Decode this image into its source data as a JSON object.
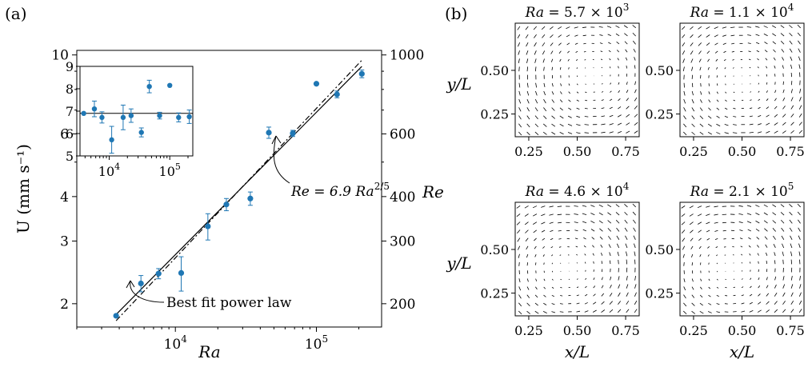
{
  "chart_data": [
    {
      "type": "scatter",
      "panel_label": "(a)",
      "x_scale": "log",
      "y_scale": "log",
      "xlabel": "Ra",
      "ylabel_left": "U (mm s⁻¹)",
      "ylabel_right": "Re",
      "xlim": [
        2000,
        290000
      ],
      "ylim": [
        1.72,
        10.3
      ],
      "x_ticks": [
        {
          "value": 10000,
          "base": "10",
          "exp": "4"
        },
        {
          "value": 100000,
          "base": "10",
          "exp": "5"
        }
      ],
      "y_ticks_left": [
        {
          "value": 2,
          "label": "2"
        },
        {
          "value": 3,
          "label": "3"
        },
        {
          "value": 4,
          "label": "4"
        },
        {
          "value": 6,
          "label": "6"
        },
        {
          "value": 10,
          "label": "10"
        }
      ],
      "y_ticks_right": [
        {
          "value": 200,
          "label": "200"
        },
        {
          "value": 300,
          "label": "300"
        },
        {
          "value": 400,
          "label": "400"
        },
        {
          "value": 600,
          "label": "600"
        },
        {
          "value": 1000,
          "label": "1000"
        }
      ],
      "right_axis_factor": 100,
      "marker_color": "#1f77b4",
      "points": [
        {
          "x": 3800,
          "y": 1.85,
          "err": 0
        },
        {
          "x": 5700,
          "y": 2.28,
          "err": 0.12
        },
        {
          "x": 7600,
          "y": 2.43,
          "err": 0.08
        },
        {
          "x": 11000,
          "y": 2.44,
          "err": 0.27
        },
        {
          "x": 17000,
          "y": 3.3,
          "err": 0.28
        },
        {
          "x": 23000,
          "y": 3.8,
          "err": 0.15
        },
        {
          "x": 34000,
          "y": 3.95,
          "err": 0.17
        },
        {
          "x": 46000,
          "y": 6.05,
          "err": 0.22
        },
        {
          "x": 68000,
          "y": 6.02,
          "err": 0.12
        },
        {
          "x": 100000,
          "y": 8.3,
          "err": 0
        },
        {
          "x": 140000,
          "y": 7.75,
          "err": 0.17
        },
        {
          "x": 210000,
          "y": 8.85,
          "err": 0.22
        }
      ],
      "lines": [
        {
          "name": "Re = 6.9 Ra^(2/5)",
          "style": "solid",
          "coefficient": 0.069,
          "exponent": 0.4,
          "x_range": [
            3800,
            210000
          ]
        },
        {
          "name": "Best fit power law",
          "style": "dashdot",
          "coefficient": 0.0562,
          "exponent": 0.42,
          "x_range": [
            3800,
            210000
          ]
        }
      ],
      "annotations": {
        "re_fit": {
          "prefix": "Re = 6.9 ",
          "var": "Ra",
          "exp": "2/5",
          "arrow_to": [
            75000,
            6.25
          ]
        },
        "best_fit": {
          "text": "Best fit power law",
          "arrow_to": [
            6500,
            2.05
          ]
        }
      },
      "inset": {
        "x_scale": "log",
        "xlim": [
          3300,
          240000
        ],
        "ylim": [
          5,
          9
        ],
        "y_ticks": [
          5,
          6,
          7,
          8,
          9
        ],
        "x_ticks": [
          {
            "value": 10000,
            "base": "10",
            "exp": "4"
          },
          {
            "value": 100000,
            "base": "10",
            "exp": "5"
          }
        ],
        "mean_line": 6.9,
        "points": [
          {
            "x": 3800,
            "y": 6.9,
            "err": 0
          },
          {
            "x": 5700,
            "y": 7.1,
            "err": 0.35
          },
          {
            "x": 7600,
            "y": 6.72,
            "err": 0.25
          },
          {
            "x": 11000,
            "y": 5.72,
            "err": 0.6
          },
          {
            "x": 17000,
            "y": 6.72,
            "err": 0.55
          },
          {
            "x": 23000,
            "y": 6.8,
            "err": 0.3
          },
          {
            "x": 34000,
            "y": 6.05,
            "err": 0.2
          },
          {
            "x": 46000,
            "y": 8.1,
            "err": 0.28
          },
          {
            "x": 68000,
            "y": 6.8,
            "err": 0.15
          },
          {
            "x": 100000,
            "y": 8.15,
            "err": 0
          },
          {
            "x": 140000,
            "y": 6.72,
            "err": 0.2
          },
          {
            "x": 210000,
            "y": 6.75,
            "err": 0.3
          }
        ]
      }
    },
    {
      "type": "vector-field",
      "panel_label": "(b)",
      "xlabel": "x/L",
      "ylabel": "y/L",
      "xlim": [
        0.18,
        0.82
      ],
      "ylim": [
        0.12,
        0.77
      ],
      "x_ticks": [
        "0.25",
        "0.50",
        "0.75"
      ],
      "y_ticks": [
        "0.25",
        "0.50"
      ],
      "subplots": [
        {
          "title_prefix": "Ra = 5.7 × 10",
          "title_exp": "3",
          "vortex_center": [
            0.62,
            0.55
          ]
        },
        {
          "title_prefix": "Ra = 1.1 × 10",
          "title_exp": "4",
          "vortex_center": [
            0.5,
            0.5
          ]
        },
        {
          "title_prefix": "Ra = 4.6 × 10",
          "title_exp": "4",
          "vortex_center": [
            0.42,
            0.42
          ]
        },
        {
          "title_prefix": "Ra = 2.1 × 10",
          "title_exp": "5",
          "vortex_center": [
            0.4,
            0.42
          ]
        }
      ]
    }
  ]
}
